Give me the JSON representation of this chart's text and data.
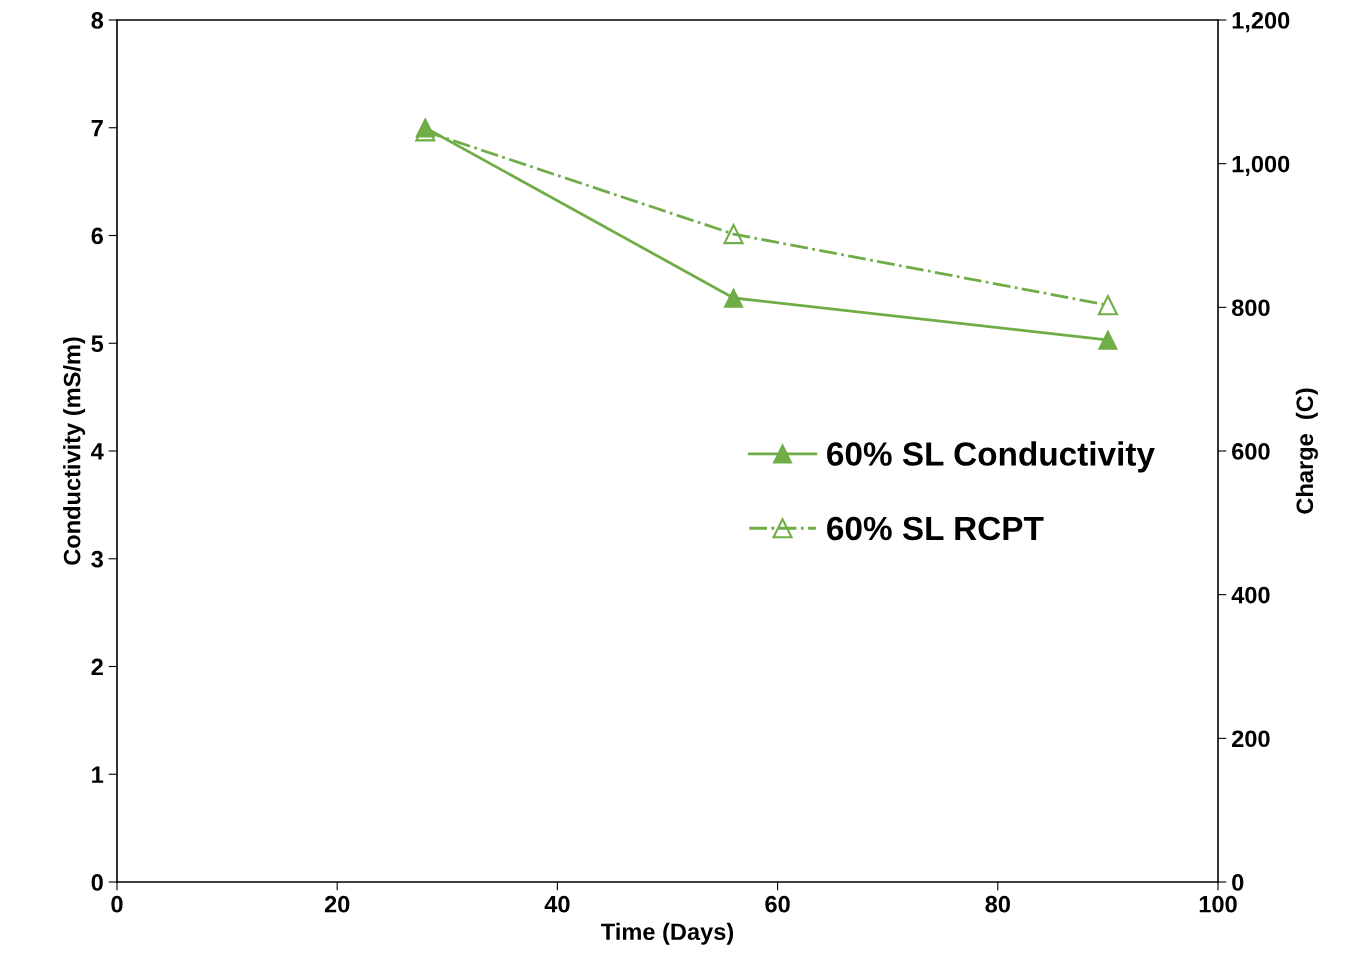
{
  "chart_data": {
    "type": "line",
    "xlabel": "Time (Days)",
    "ylabel": "Conductivity (mS/m)",
    "y2label": "Charge  (C)",
    "xlim": [
      0,
      100
    ],
    "xticks": [
      0,
      20,
      40,
      60,
      80,
      100
    ],
    "ylim": [
      0,
      8
    ],
    "yticks": [
      0,
      1,
      2,
      3,
      4,
      5,
      6,
      7,
      8
    ],
    "y2lim": [
      0,
      1200
    ],
    "y2ticks": [
      0,
      200,
      400,
      600,
      800,
      {
        "value": 1000,
        "label": "1,000"
      },
      {
        "value": 1200,
        "label": "1,200"
      }
    ],
    "grid": false,
    "legend": "right",
    "marker": "triangle",
    "series": [
      {
        "name": "60% SL Conductivity",
        "color": "#70ad47",
        "x": [
          28,
          56,
          90
        ],
        "values": [
          7.0,
          5.42,
          5.03
        ],
        "line_style": "solid"
      },
      {
        "name": "60% SL RCPT",
        "color": "#70ad47",
        "x": [
          28,
          56,
          90
        ],
        "values": [
          1045,
          902,
          803
        ],
        "axis": "y2",
        "line_style": "dashdot"
      }
    ]
  }
}
